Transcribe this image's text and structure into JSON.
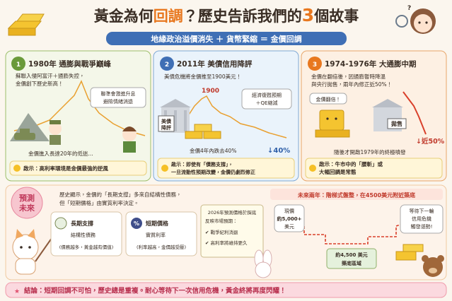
{
  "header": {
    "title_parts": [
      "黃金為何",
      "回調",
      "？歷史告訴我們的",
      "3",
      "個故事"
    ],
    "banner": "地緣政治溢價消失 ＋ 貨幣緊縮 ＝ 金價回調"
  },
  "stories": [
    {
      "number": "1",
      "heading": "1980年 通膨與戰爭巔峰",
      "text": [
        "蘇聯入侵阿富汗＋通膨失控，",
        "金價創下歷史新高！"
      ],
      "bubble": [
        "聯準會激進升息",
        "避險情緒消退"
      ],
      "caption": "金價進入長達20年的低迷...",
      "insight": [
        "啟示：高利率環境是金價最強的逆風"
      ]
    },
    {
      "number": "2",
      "heading": "2011年 美債信用降評",
      "text": [
        "美債危機將金價推至1900美元！"
      ],
      "peak_label": "1900",
      "sign": [
        "美債",
        "降評"
      ],
      "bubble": [
        "經濟復甦預期",
        "＋QE縮減"
      ],
      "caption": "金價4年內跌去40%",
      "drop_label": "↓40%",
      "insight": [
        "啟示：即使有「債務支撐」，",
        "一旦流動性預期改變，金價仍劇烈修正"
      ]
    },
    {
      "number": "3",
      "heading": "1974-1976年 大通膨中期",
      "text": [
        "金價在翻倍後，因通膨暫時降溫",
        "與央行拋售，兩年內修正近50%！"
      ],
      "bubble": "金價翻倍！",
      "sign": "拋售",
      "drop_label": "↓近50%",
      "caption": "隨後才開啟1979年的終極噴發",
      "insight": [
        "啟示：牛市中的「腰斬」或",
        "大幅回調是常態"
      ]
    }
  ],
  "forecast": {
    "badge": [
      "預測",
      "未來"
    ],
    "intro": [
      "歷史顯示，金價的「長期支撐」多來自結構性債務，",
      "但「短期價格」由實質利率決定。"
    ],
    "long_term": {
      "title": "長期支撐",
      "subtitle": "結構性債務",
      "note": "(債務越多，黃金越有價值)"
    },
    "short_term": {
      "title": "短期價格",
      "subtitle": "實質利率",
      "note": "(利率越高，金價越受壓)"
    },
    "notepad": {
      "lines": [
        "2026年預測價格於探底",
        "反映市場預期："
      ],
      "checks": [
        "戰爭紀利消退",
        "高利率將維持更久"
      ]
    },
    "outlook": {
      "headline": "未來兩年：階梯式盤整，在4500美元附近築底",
      "current": [
        "現價",
        "約5,000+",
        "美元"
      ],
      "floor": [
        "約4,500 美元",
        "築底區域"
      ],
      "wait": [
        "等待下一輪",
        "信用危機",
        "觸發漲勢!"
      ]
    }
  },
  "conclusion": "結論：短期回調不可怕，歷史總是重複。耐心等待下一次信用危機，黃金終將再度閃耀！"
}
